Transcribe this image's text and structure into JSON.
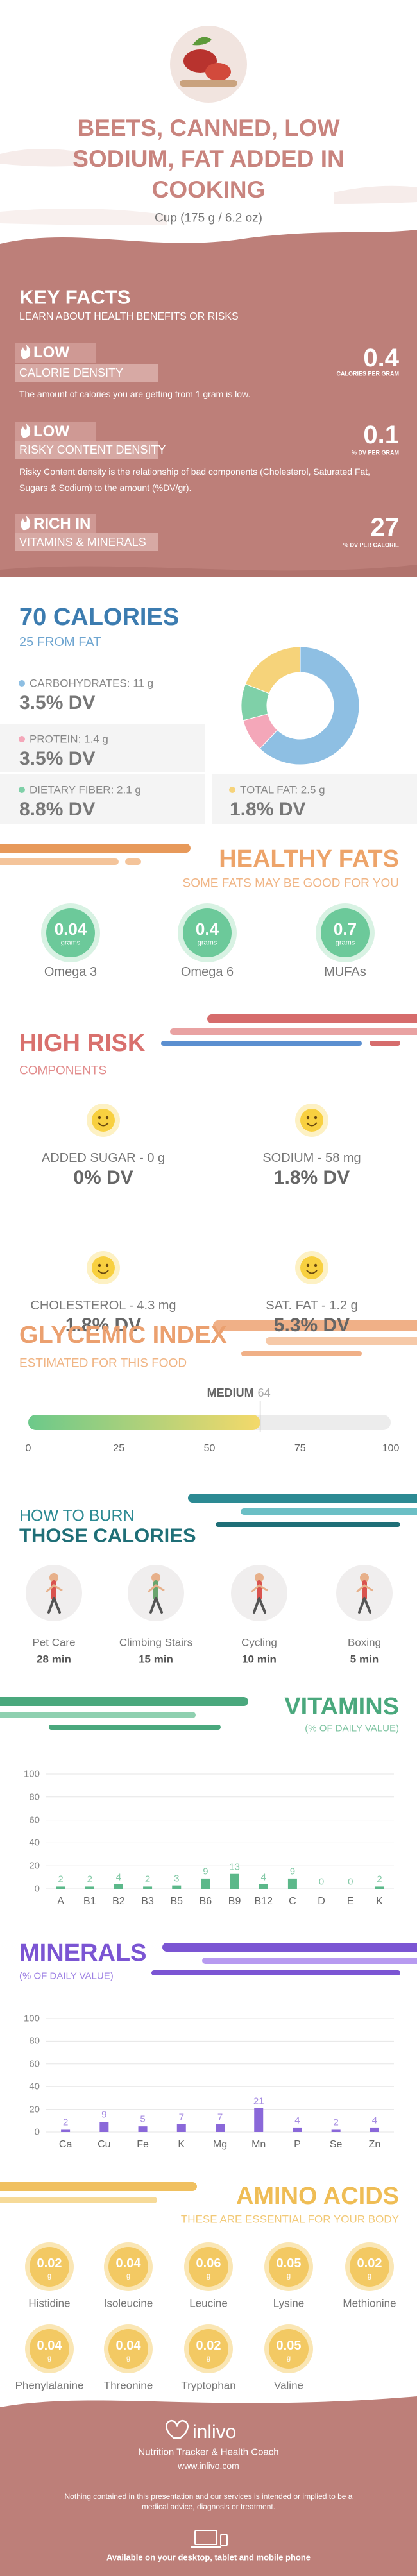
{
  "header": {
    "title": "BEETS, CANNED, LOW SODIUM, FAT ADDED IN COOKING",
    "serving": "Cup (175 g / 6.2 oz)"
  },
  "key_facts": {
    "title": "KEY FACTS",
    "subtitle": "LEARN ABOUT HEALTH BENEFITS OR RISKS",
    "items": [
      {
        "level": "LOW",
        "label": "CALORIE DENSITY",
        "value": 0.4,
        "unit": "CALORIES PER GRAM",
        "description": "The amount of calories you are getting from 1 gram is low."
      },
      {
        "level": "LOW",
        "label": "RISKY CONTENT DENSITY",
        "value": 0.1,
        "unit": "% DV PER GRAM",
        "description": "Risky Content density is the relationship of bad components (Cholesterol, Saturated Fat, Sugars & Sodium) to the amount (%DV/gr)."
      },
      {
        "level": "RICH IN",
        "label": "VITAMINS & MINERALS",
        "value": 27,
        "unit": "% DV PER CALORIE"
      }
    ]
  },
  "calories": {
    "title": "70 CALORIES",
    "subtitle": "25 FROM FAT",
    "nutrients": [
      {
        "label": "CARBOHYDRATES: 11 g",
        "dv": "3.5% DV",
        "color": "#8ebfe3",
        "share": 62
      },
      {
        "label": "PROTEIN: 1.4 g",
        "dv": "3.5% DV",
        "color": "#f4a7b9",
        "share": 9
      },
      {
        "label": "DIETARY FIBER: 2.1 g",
        "dv": "8.8% DV",
        "color": "#7fd0a8",
        "share": 10
      },
      {
        "label": "TOTAL FAT: 2.5 g",
        "dv": "1.8% DV",
        "color": "#f6d37a",
        "share": 19
      }
    ]
  },
  "healthy_fats": {
    "title": "HEALTHY FATS",
    "subtitle": "SOME FATS MAY BE GOOD FOR YOU",
    "items": [
      {
        "value": 0.04,
        "unit": "grams",
        "name": "Omega 3"
      },
      {
        "value": 0.4,
        "unit": "grams",
        "name": "Omega 6"
      },
      {
        "value": 0.7,
        "unit": "grams",
        "name": "MUFAs"
      }
    ]
  },
  "high_risk": {
    "title": "HIGH RISK",
    "subtitle": "COMPONENTS",
    "items": [
      {
        "label": "ADDED SUGAR - 0 g",
        "dv": "0% DV"
      },
      {
        "label": "SODIUM - 58 mg",
        "dv": "1.8% DV"
      },
      {
        "label": "CHOLESTEROL - 4.3 mg",
        "dv": "1.8% DV"
      },
      {
        "label": "SAT. FAT - 1.2 g",
        "dv": "5.3% DV"
      }
    ]
  },
  "glycemic": {
    "title": "GLYCEMIC INDEX",
    "subtitle": "ESTIMATED FOR THIS FOOD",
    "level": "MEDIUM",
    "value": 64,
    "xlim": [
      0,
      100
    ],
    "xticks": [
      0,
      25,
      50,
      75,
      100
    ]
  },
  "burn": {
    "title_line1": "HOW TO BURN",
    "title_line2": "THOSE CALORIES",
    "activities": [
      {
        "name": "Pet Care",
        "time": "28 min"
      },
      {
        "name": "Climbing Stairs",
        "time": "15 min"
      },
      {
        "name": "Cycling",
        "time": "10 min"
      },
      {
        "name": "Boxing",
        "time": "5 min"
      }
    ]
  },
  "vitamins": {
    "title": "VITAMINS",
    "subtitle": "(% OF DAILY VALUE)",
    "categories": [
      "A",
      "B1",
      "B2",
      "B3",
      "B5",
      "B6",
      "B9",
      "B12",
      "C",
      "D",
      "E",
      "K"
    ],
    "values": [
      2,
      2,
      4,
      2,
      3,
      9,
      13,
      4,
      9,
      0,
      0,
      2
    ],
    "ylim": [
      0,
      100
    ],
    "yticks": [
      0,
      20,
      40,
      60,
      80,
      100
    ],
    "color": "#5cb88a"
  },
  "minerals": {
    "title": "MINERALS",
    "subtitle": "(% OF DAILY VALUE)",
    "categories": [
      "Ca",
      "Cu",
      "Fe",
      "K",
      "Mg",
      "Mn",
      "P",
      "Se",
      "Zn"
    ],
    "values": [
      2,
      9,
      5,
      7,
      7,
      21,
      4,
      2,
      4
    ],
    "ylim": [
      0,
      100
    ],
    "yticks": [
      0,
      20,
      40,
      60,
      80,
      100
    ],
    "color": "#8a68d9"
  },
  "amino_acids": {
    "title": "AMINO ACIDS",
    "subtitle": "THESE ARE ESSENTIAL FOR YOUR BODY",
    "unit": "g",
    "items": [
      {
        "name": "Histidine",
        "value": 0.02
      },
      {
        "name": "Isoleucine",
        "value": 0.04
      },
      {
        "name": "Leucine",
        "value": 0.06
      },
      {
        "name": "Lysine",
        "value": 0.05
      },
      {
        "name": "Methionine",
        "value": 0.02
      },
      {
        "name": "Phenylalanine",
        "value": 0.04
      },
      {
        "name": "Threonine",
        "value": 0.04
      },
      {
        "name": "Tryptophan",
        "value": 0.02
      },
      {
        "name": "Valine",
        "value": 0.05
      }
    ]
  },
  "footer": {
    "brand": "inlivo",
    "tagline": "Nutrition Tracker & Health Coach",
    "url": "www.inlivo.com",
    "disclaimer": "Nothing contained in this presentation and our services is intended or implied to be a medical advice, diagnosis or treatment.",
    "availability": "Available on your desktop, tablet and mobile phone"
  }
}
